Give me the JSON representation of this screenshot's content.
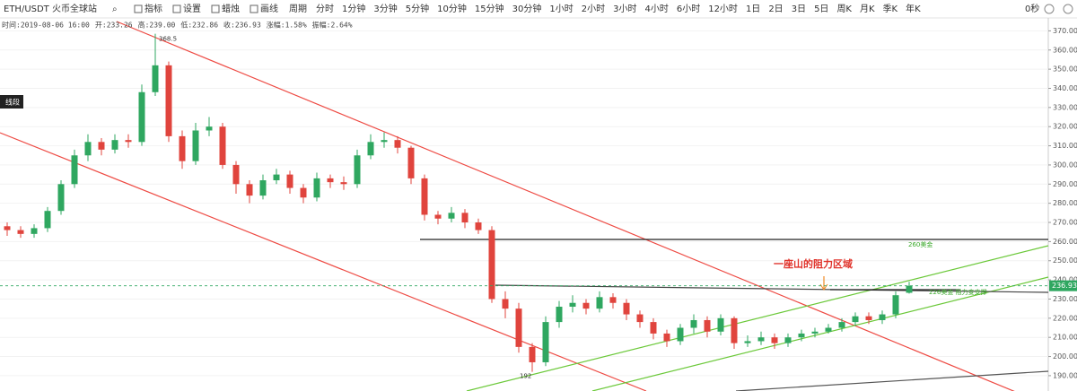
{
  "toolbar": {
    "symbol": "ETH/USDT 火币全球站",
    "tools": [
      "指标",
      "设置",
      "蜡烛",
      "画线"
    ],
    "period_label": "周期",
    "periods": [
      "分时",
      "1分钟",
      "3分钟",
      "5分钟",
      "10分钟",
      "15分钟",
      "30分钟",
      "1小时",
      "2小时",
      "3小时",
      "4小时",
      "6小时",
      "12小时",
      "1日",
      "2日",
      "3日",
      "5日",
      "周K",
      "月K",
      "季K",
      "年K"
    ],
    "selected_period": "4小时",
    "refresh": "0秒"
  },
  "info": [
    "时间:2019-08-06 16:00",
    "开:233.26",
    "高:239.00",
    "低:232.86",
    "收:236.93",
    "涨幅:1.58%",
    "振幅:2.64%"
  ],
  "chart_data": {
    "type": "candlestick",
    "up_color": "#2fa760",
    "down_color": "#e0443d",
    "grid": true,
    "open": [
      268,
      266,
      264,
      267,
      276,
      290,
      305,
      312,
      308,
      313,
      312,
      338,
      352,
      315,
      302,
      318,
      320,
      300,
      290,
      284,
      292,
      295,
      288,
      283,
      293,
      291,
      290,
      305,
      312,
      313,
      309,
      293,
      274,
      272,
      275,
      270,
      266,
      230,
      225,
      205,
      197,
      218,
      226,
      228,
      225,
      231,
      228,
      222,
      218,
      212,
      208,
      215,
      219,
      213,
      220,
      207,
      208,
      210,
      207,
      210,
      212,
      213,
      215,
      218,
      221,
      219,
      222,
      233.26
    ],
    "high": [
      270,
      268,
      269,
      278,
      292,
      308,
      316,
      314,
      316,
      316,
      342,
      368.5,
      354,
      318,
      322,
      325,
      322,
      302,
      292,
      295,
      298,
      297,
      290,
      296,
      295,
      294,
      308,
      316,
      317,
      315,
      310,
      295,
      276,
      278,
      277,
      272,
      268,
      234,
      228,
      207,
      221,
      229,
      232,
      230,
      234,
      233,
      230,
      224,
      220,
      214,
      217,
      222,
      221,
      222,
      221,
      211,
      213,
      212,
      212,
      214,
      215,
      217,
      220,
      223,
      223,
      224,
      234,
      239
    ],
    "low": [
      263,
      262,
      262,
      265,
      274,
      288,
      302,
      305,
      306,
      309,
      310,
      336,
      312,
      298,
      300,
      315,
      298,
      285,
      280,
      282,
      290,
      285,
      280,
      281,
      288,
      287,
      288,
      303,
      309,
      306,
      290,
      271,
      269,
      270,
      267,
      264,
      228,
      220,
      202,
      192,
      195,
      215,
      223,
      222,
      223,
      225,
      219,
      215,
      209,
      205,
      206,
      212,
      210,
      211,
      204,
      205,
      206,
      204,
      205,
      208,
      210,
      212,
      213,
      216,
      217,
      217,
      220,
      232.86
    ],
    "close": [
      266,
      264,
      267,
      276,
      290,
      305,
      312,
      308,
      313,
      312,
      338,
      352,
      315,
      302,
      318,
      320,
      300,
      290,
      284,
      292,
      295,
      288,
      283,
      293,
      291,
      290,
      305,
      312,
      313,
      309,
      293,
      274,
      272,
      275,
      270,
      266,
      230,
      225,
      205,
      197,
      218,
      226,
      228,
      225,
      231,
      228,
      222,
      218,
      212,
      208,
      215,
      219,
      213,
      220,
      207,
      208,
      210,
      207,
      210,
      212,
      213,
      215,
      218,
      221,
      219,
      222,
      232,
      236.93
    ],
    "ylim": [
      182,
      373
    ],
    "yticks": [
      {
        "value": 190,
        "label": "190.00"
      },
      {
        "value": 200,
        "label": "200.00"
      },
      {
        "value": 210,
        "label": "210.00"
      },
      {
        "value": 220,
        "label": "220.00"
      },
      {
        "value": 230,
        "label": "230.00"
      },
      {
        "value": 240,
        "label": "240.00"
      },
      {
        "value": 250,
        "label": "250.00"
      },
      {
        "value": 260,
        "label": "260.00"
      },
      {
        "value": 270,
        "label": "270.00"
      },
      {
        "value": 280,
        "label": "280.00"
      },
      {
        "value": 290,
        "label": "290.00"
      },
      {
        "value": 300,
        "label": "300.00"
      },
      {
        "value": 310,
        "label": "310.00"
      },
      {
        "value": 320,
        "label": "320.00"
      },
      {
        "value": 330,
        "label": "330.00"
      },
      {
        "value": 340,
        "label": "340.00"
      },
      {
        "value": 350,
        "label": "350.00"
      },
      {
        "value": 360,
        "label": "360.00"
      },
      {
        "value": 370,
        "label": "370.00"
      }
    ],
    "annotations": {
      "line_tool": "线段",
      "resistance_zone": "一座山的阻力区域",
      "level_260": "260美金",
      "level_226": "226美金 阻力变支撑"
    }
  }
}
